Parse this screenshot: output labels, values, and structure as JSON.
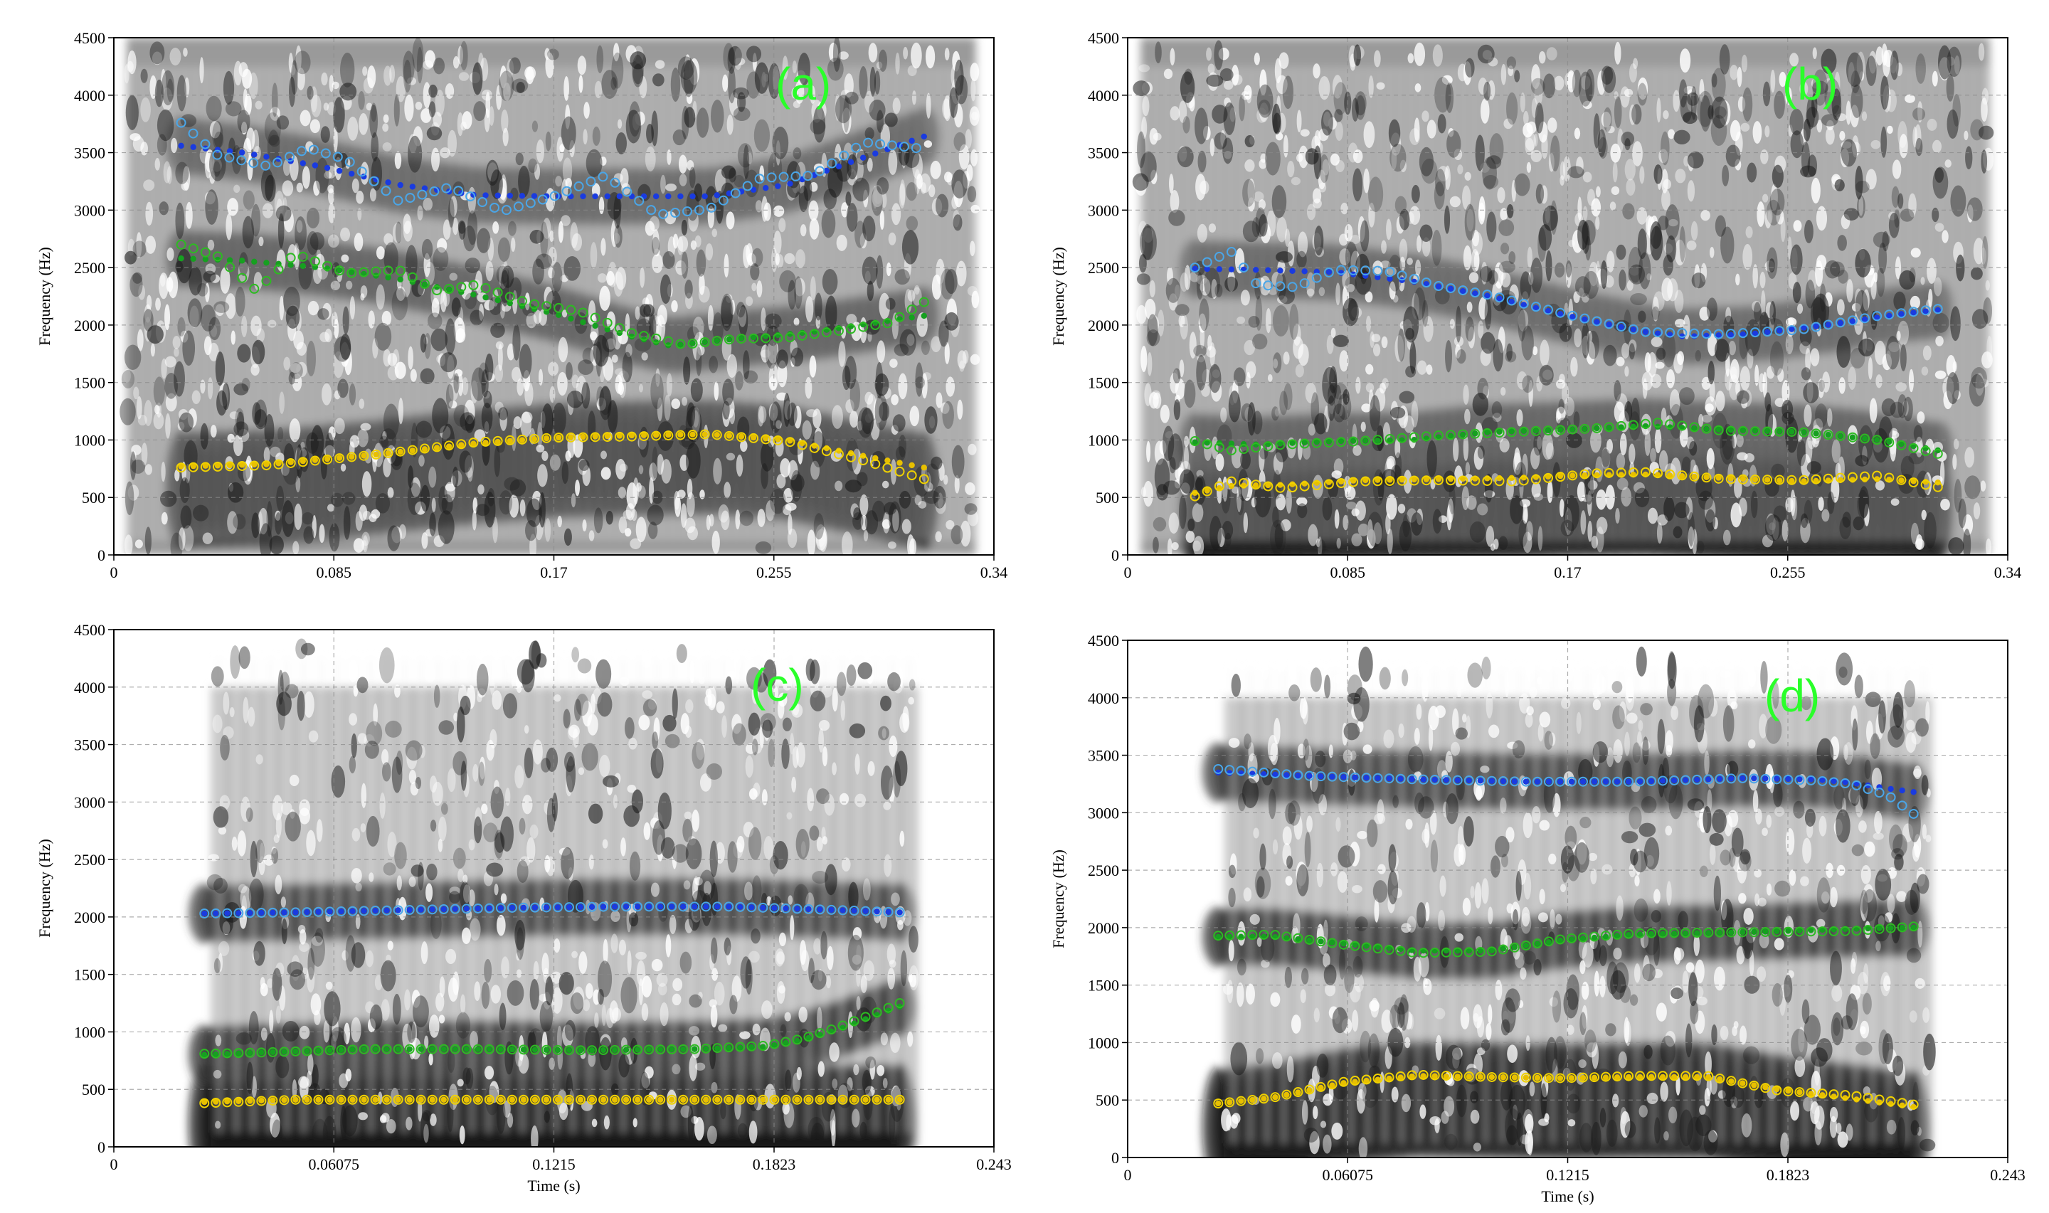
{
  "chart_data": [
    {
      "id": "a",
      "type": "scatter",
      "panel_label": "(a)",
      "xlabel": "",
      "ylabel": "Frequency (Hz)",
      "xlim": [
        0,
        0.34
      ],
      "ylim": [
        0,
        4500
      ],
      "x_ticks": [
        "0",
        "0.085",
        "0.17",
        "0.255",
        "0.34"
      ],
      "y_ticks": [
        "0",
        "500",
        "1000",
        "1500",
        "2000",
        "2500",
        "3000",
        "3500",
        "4000",
        "4500"
      ],
      "grid": true,
      "series": [
        {
          "color": "#1a3be0",
          "marker": "dot",
          "x": [
            0.026,
            0.05,
            0.08,
            0.11,
            0.14,
            0.17,
            0.2,
            0.23,
            0.26,
            0.29,
            0.313
          ],
          "y": [
            3560,
            3500,
            3380,
            3220,
            3130,
            3120,
            3120,
            3120,
            3220,
            3460,
            3640
          ]
        },
        {
          "color": "#4aa6e8",
          "marker": "circle",
          "x": [
            0.026,
            0.04,
            0.06,
            0.075,
            0.09,
            0.11,
            0.13,
            0.15,
            0.17,
            0.19,
            0.21,
            0.23,
            0.25,
            0.27,
            0.29,
            0.31
          ],
          "y": [
            3760,
            3480,
            3380,
            3540,
            3440,
            3080,
            3200,
            2990,
            3120,
            3300,
            2960,
            3010,
            3280,
            3300,
            3590,
            3540
          ]
        },
        {
          "color": "#16a020",
          "marker": "dot",
          "x": [
            0.026,
            0.05,
            0.08,
            0.11,
            0.14,
            0.17,
            0.2,
            0.215,
            0.24,
            0.27,
            0.3,
            0.313
          ],
          "y": [
            2580,
            2560,
            2500,
            2400,
            2260,
            2100,
            1900,
            1820,
            1880,
            1940,
            2040,
            2080
          ]
        },
        {
          "color": "#2dbb22",
          "marker": "circle",
          "x": [
            0.026,
            0.04,
            0.055,
            0.07,
            0.09,
            0.11,
            0.125,
            0.14,
            0.16,
            0.18,
            0.2,
            0.22,
            0.24,
            0.26,
            0.28,
            0.3,
            0.313
          ],
          "y": [
            2700,
            2600,
            2300,
            2620,
            2450,
            2480,
            2300,
            2350,
            2190,
            2120,
            1930,
            1830,
            1880,
            1890,
            1950,
            2020,
            2200
          ]
        },
        {
          "color": "#e8c000",
          "marker": "dot",
          "x": [
            0.026,
            0.06,
            0.1,
            0.14,
            0.17,
            0.2,
            0.23,
            0.26,
            0.29,
            0.313
          ],
          "y": [
            770,
            790,
            870,
            970,
            1020,
            1040,
            1050,
            1000,
            860,
            760
          ]
        },
        {
          "color": "#f0d200",
          "marker": "circle",
          "x": [
            0.026,
            0.06,
            0.1,
            0.14,
            0.17,
            0.2,
            0.23,
            0.26,
            0.29,
            0.313
          ],
          "y": [
            760,
            780,
            870,
            980,
            1020,
            1030,
            1050,
            990,
            820,
            660
          ]
        }
      ]
    },
    {
      "id": "b",
      "type": "scatter",
      "panel_label": "(b)",
      "xlabel": "",
      "ylabel": "Frequency (Hz)",
      "xlim": [
        0,
        0.34
      ],
      "ylim": [
        0,
        4500
      ],
      "x_ticks": [
        "0",
        "0.085",
        "0.17",
        "0.255",
        "0.34"
      ],
      "y_ticks": [
        "0",
        "500",
        "1000",
        "1500",
        "2000",
        "2500",
        "3000",
        "3500",
        "4000",
        "4500"
      ],
      "grid": true,
      "series": [
        {
          "color": "#1a3be0",
          "marker": "dot",
          "x": [
            0.026,
            0.05,
            0.08,
            0.11,
            0.14,
            0.17,
            0.2,
            0.215,
            0.24,
            0.27,
            0.3,
            0.313
          ],
          "y": [
            2490,
            2480,
            2460,
            2380,
            2250,
            2080,
            1940,
            1900,
            1920,
            2000,
            2100,
            2130
          ]
        },
        {
          "color": "#4aa6e8",
          "marker": "circle",
          "x": [
            0.026,
            0.04,
            0.05,
            0.065,
            0.08,
            0.1,
            0.12,
            0.14,
            0.17,
            0.2,
            0.23,
            0.26,
            0.29,
            0.313
          ],
          "y": [
            2500,
            2640,
            2350,
            2330,
            2480,
            2470,
            2340,
            2260,
            2090,
            1940,
            1920,
            1960,
            2080,
            2140
          ]
        },
        {
          "color": "#16a020",
          "marker": "dot",
          "x": [
            0.026,
            0.05,
            0.08,
            0.11,
            0.14,
            0.17,
            0.2,
            0.23,
            0.26,
            0.29,
            0.313
          ],
          "y": [
            980,
            960,
            990,
            1000,
            1070,
            1090,
            1120,
            1090,
            1070,
            1000,
            910
          ]
        },
        {
          "color": "#2dbb22",
          "marker": "circle",
          "x": [
            0.026,
            0.04,
            0.06,
            0.09,
            0.12,
            0.15,
            0.18,
            0.205,
            0.23,
            0.26,
            0.29,
            0.313
          ],
          "y": [
            990,
            910,
            960,
            990,
            1040,
            1070,
            1100,
            1150,
            1080,
            1070,
            1000,
            880
          ]
        },
        {
          "color": "#e8c000",
          "marker": "dot",
          "x": [
            0.026,
            0.04,
            0.06,
            0.09,
            0.12,
            0.15,
            0.17,
            0.2,
            0.23,
            0.26,
            0.29,
            0.313
          ],
          "y": [
            540,
            600,
            610,
            650,
            660,
            670,
            690,
            700,
            670,
            640,
            660,
            630
          ]
        },
        {
          "color": "#f0d200",
          "marker": "circle",
          "x": [
            0.026,
            0.04,
            0.06,
            0.09,
            0.12,
            0.15,
            0.18,
            0.2,
            0.23,
            0.26,
            0.29,
            0.313
          ],
          "y": [
            510,
            640,
            580,
            640,
            650,
            640,
            710,
            720,
            660,
            650,
            690,
            590
          ]
        }
      ]
    },
    {
      "id": "c",
      "type": "scatter",
      "panel_label": "(c)",
      "xlabel": "Time (s)",
      "ylabel": "Frequency (Hz)",
      "xlim": [
        0,
        0.243
      ],
      "ylim": [
        0,
        4500
      ],
      "x_ticks": [
        "0",
        "0.06075",
        "0.1215",
        "0.1823",
        "0.243"
      ],
      "y_ticks": [
        "0",
        "500",
        "1000",
        "1500",
        "2000",
        "2500",
        "3000",
        "3500",
        "4000",
        "4500"
      ],
      "grid": true,
      "series": [
        {
          "color": "#1a3be0",
          "marker": "dot",
          "x": [
            0.025,
            0.05,
            0.08,
            0.11,
            0.14,
            0.17,
            0.2,
            0.217
          ],
          "y": [
            2030,
            2040,
            2060,
            2080,
            2090,
            2090,
            2060,
            2040
          ]
        },
        {
          "color": "#4aa6e8",
          "marker": "circle",
          "x": [
            0.025,
            0.05,
            0.08,
            0.11,
            0.14,
            0.17,
            0.2,
            0.217
          ],
          "y": [
            2030,
            2040,
            2060,
            2080,
            2090,
            2090,
            2060,
            2040
          ]
        },
        {
          "color": "#16a020",
          "marker": "dot",
          "x": [
            0.025,
            0.04,
            0.07,
            0.1,
            0.13,
            0.16,
            0.18,
            0.19,
            0.2,
            0.21,
            0.217
          ],
          "y": [
            800,
            820,
            850,
            850,
            840,
            850,
            870,
            930,
            1020,
            1140,
            1220
          ]
        },
        {
          "color": "#2dbb22",
          "marker": "circle",
          "x": [
            0.025,
            0.04,
            0.07,
            0.1,
            0.13,
            0.16,
            0.18,
            0.19,
            0.2,
            0.21,
            0.217
          ],
          "y": [
            810,
            820,
            850,
            850,
            840,
            850,
            880,
            940,
            1040,
            1160,
            1250
          ]
        },
        {
          "color": "#e8c000",
          "marker": "dot",
          "x": [
            0.025,
            0.05,
            0.08,
            0.11,
            0.14,
            0.17,
            0.2,
            0.217
          ],
          "y": [
            390,
            410,
            410,
            410,
            410,
            410,
            410,
            410
          ]
        },
        {
          "color": "#f0d200",
          "marker": "circle",
          "x": [
            0.025,
            0.05,
            0.08,
            0.11,
            0.14,
            0.17,
            0.2,
            0.217
          ],
          "y": [
            380,
            410,
            410,
            410,
            410,
            410,
            410,
            410
          ]
        }
      ]
    },
    {
      "id": "d",
      "type": "scatter",
      "panel_label": "(d)",
      "xlabel": "Time (s)",
      "ylabel": "Frequency (Hz)",
      "xlim": [
        0,
        0.243
      ],
      "ylim": [
        0,
        4500
      ],
      "x_ticks": [
        "0",
        "0.06075",
        "0.1215",
        "0.1823",
        "0.243"
      ],
      "y_ticks": [
        "0",
        "500",
        "1000",
        "1500",
        "2000",
        "2500",
        "3000",
        "3500",
        "4000",
        "4500"
      ],
      "grid": true,
      "series": [
        {
          "color": "#1a3be0",
          "marker": "dot",
          "x": [
            0.025,
            0.05,
            0.08,
            0.11,
            0.14,
            0.17,
            0.19,
            0.2,
            0.21,
            0.217
          ],
          "y": [
            3350,
            3320,
            3290,
            3270,
            3270,
            3300,
            3290,
            3260,
            3210,
            3180
          ]
        },
        {
          "color": "#4aa6e8",
          "marker": "circle",
          "x": [
            0.025,
            0.05,
            0.08,
            0.11,
            0.14,
            0.17,
            0.19,
            0.2,
            0.21,
            0.217
          ],
          "y": [
            3380,
            3320,
            3290,
            3270,
            3270,
            3300,
            3280,
            3250,
            3150,
            2990
          ]
        },
        {
          "color": "#16a020",
          "marker": "dot",
          "x": [
            0.025,
            0.04,
            0.06,
            0.08,
            0.1,
            0.12,
            0.14,
            0.17,
            0.2,
            0.217
          ],
          "y": [
            1920,
            1920,
            1860,
            1800,
            1800,
            1890,
            1940,
            1960,
            1990,
            2000
          ]
        },
        {
          "color": "#2dbb22",
          "marker": "circle",
          "x": [
            0.025,
            0.04,
            0.06,
            0.08,
            0.1,
            0.12,
            0.14,
            0.17,
            0.2,
            0.217
          ],
          "y": [
            1930,
            1940,
            1850,
            1780,
            1790,
            1900,
            1950,
            1960,
            1970,
            2010
          ]
        },
        {
          "color": "#e8c000",
          "marker": "dot",
          "x": [
            0.025,
            0.04,
            0.06,
            0.08,
            0.1,
            0.12,
            0.14,
            0.16,
            0.18,
            0.2,
            0.217
          ],
          "y": [
            470,
            520,
            650,
            710,
            700,
            690,
            700,
            700,
            590,
            510,
            440
          ]
        },
        {
          "color": "#f0d200",
          "marker": "circle",
          "x": [
            0.025,
            0.04,
            0.06,
            0.08,
            0.1,
            0.12,
            0.14,
            0.16,
            0.18,
            0.2,
            0.217
          ],
          "y": [
            470,
            520,
            660,
            720,
            700,
            690,
            710,
            710,
            580,
            540,
            460
          ]
        }
      ]
    }
  ]
}
